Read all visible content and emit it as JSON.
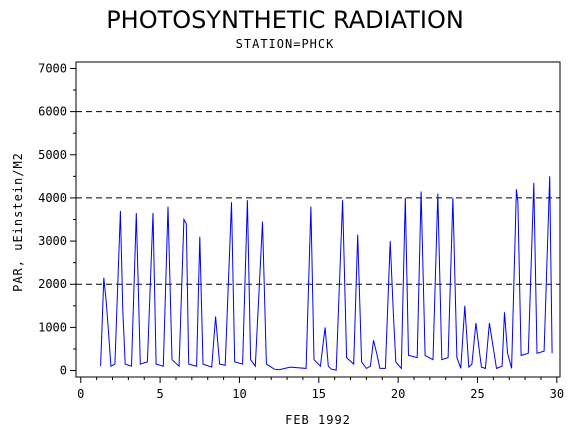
{
  "chart_data": {
    "type": "line",
    "title": "PHOTOSYNTHETIC RADIATION",
    "subtitle": "STATION=PHCK",
    "xlabel": "FEB 1992",
    "ylabel": "PAR, uEinstein/M2",
    "xlim": [
      -0.3,
      30.2
    ],
    "ylim": [
      -150,
      7150
    ],
    "x_ticks": [
      0,
      5,
      10,
      15,
      20,
      25,
      30
    ],
    "y_ticks": [
      0,
      1000,
      2000,
      3000,
      4000,
      5000,
      6000,
      7000
    ],
    "y_tick_labels": [
      "0",
      "1000",
      "2000",
      "3000",
      "4000",
      "5000",
      "6000",
      "7000"
    ],
    "reference_lines": [
      2000,
      4000,
      6000
    ],
    "grid": false,
    "line_color": "#0000ff",
    "series": [
      {
        "x": [
          1.25,
          1.45,
          1.6,
          1.75,
          1.9,
          2.15,
          2.5,
          2.65,
          2.8,
          3.2,
          3.5,
          3.75,
          4.2,
          4.55,
          4.75,
          5.2,
          5.5,
          5.75,
          6.2,
          6.5,
          6.65,
          6.8,
          7.3,
          7.5,
          7.7,
          8.25,
          8.5,
          8.75,
          9.1,
          9.5,
          9.7,
          10.2,
          10.5,
          10.7,
          11.0,
          11.45,
          11.7,
          12.2,
          12.5,
          13.2,
          14.2,
          14.5,
          14.7,
          15.1,
          15.4,
          15.6,
          15.8,
          16.1,
          16.5,
          16.75,
          17.2,
          17.45,
          17.7,
          18.0,
          18.25,
          18.45,
          18.65,
          18.85,
          19.2,
          19.5,
          19.7,
          19.85,
          20.2,
          20.45,
          20.65,
          21.2,
          21.45,
          21.7,
          22.2,
          22.5,
          22.75,
          23.15,
          23.45,
          23.7,
          23.95,
          24.2,
          24.45,
          24.65,
          24.9,
          25.25,
          25.5,
          25.75,
          26.2,
          26.4,
          26.55,
          26.7,
          26.9,
          27.15,
          27.45,
          27.55,
          27.75,
          28.2,
          28.55,
          28.75,
          29.2,
          29.55,
          29.7
        ],
        "y": [
          100,
          2150,
          1600,
          900,
          100,
          150,
          3700,
          1400,
          150,
          100,
          3650,
          150,
          200,
          3650,
          150,
          100,
          3800,
          250,
          100,
          3500,
          3400,
          150,
          100,
          3100,
          150,
          80,
          1250,
          150,
          120,
          3900,
          200,
          150,
          3950,
          250,
          100,
          3450,
          150,
          30,
          20,
          80,
          50,
          3800,
          250,
          100,
          1000,
          100,
          30,
          10,
          3950,
          300,
          150,
          3150,
          200,
          50,
          100,
          700,
          400,
          50,
          50,
          3000,
          1300,
          200,
          50,
          4000,
          350,
          300,
          4150,
          350,
          250,
          4100,
          250,
          300,
          4000,
          300,
          50,
          1500,
          80,
          150,
          1100,
          80,
          50,
          1100,
          50,
          80,
          100,
          1350,
          400,
          50,
          4200,
          3900,
          350,
          400,
          4350,
          400,
          450,
          4500,
          400
        ]
      }
    ]
  }
}
